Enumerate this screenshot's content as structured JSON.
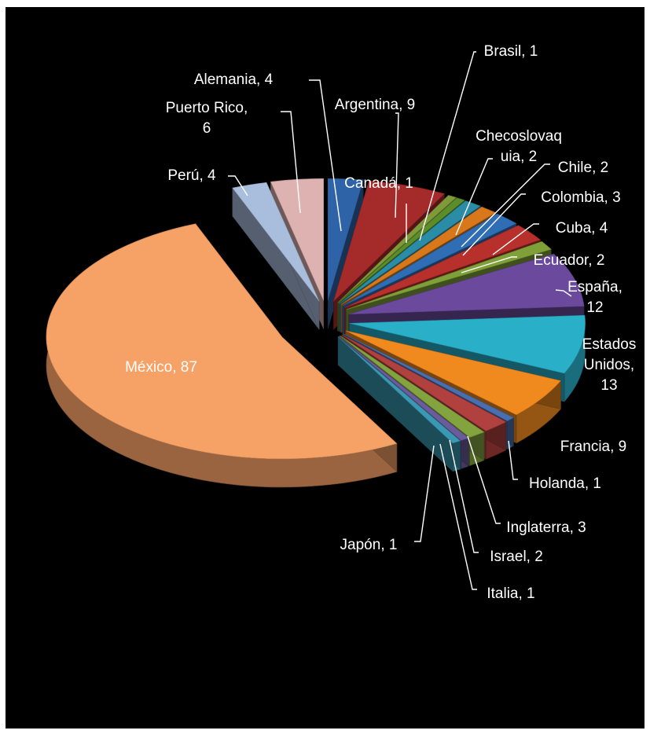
{
  "chart_data": {
    "type": "pie",
    "title": "",
    "labels": [
      "Alemania",
      "Argentina",
      "Brasil",
      "Canadá",
      "Checoslovaquia",
      "Chile",
      "Colombia",
      "Cuba",
      "Ecuador",
      "España",
      "Estados Unidos",
      "Francia",
      "Holanda",
      "Inglaterra",
      "Israel",
      "Italia",
      "Japón",
      "México",
      "Perú",
      "Puerto Rico"
    ],
    "values": [
      4,
      9,
      1,
      1,
      2,
      2,
      3,
      4,
      2,
      12,
      13,
      9,
      1,
      3,
      2,
      1,
      1,
      87,
      4,
      6
    ],
    "data_labels": [
      [
        "Alemania, 4"
      ],
      [
        "Argentina, 9"
      ],
      [
        "Brasil, 1"
      ],
      [
        "Canadá, 1"
      ],
      [
        "Checoslovaq",
        "uia, 2"
      ],
      [
        "Chile, 2"
      ],
      [
        "Colombia, 3"
      ],
      [
        "Cuba, 4"
      ],
      [
        "Ecuador, 2"
      ],
      [
        "España,",
        "12"
      ],
      [
        "Estados",
        "Unidos,",
        "13"
      ],
      [
        "Francia, 9"
      ],
      [
        "Holanda, 1"
      ],
      [
        "Inglaterra, 3"
      ],
      [
        "Israel, 2"
      ],
      [
        "Italia, 1"
      ],
      [
        "Japón, 1"
      ],
      [
        "México, 87"
      ],
      [
        "Perú, 4"
      ],
      [
        "Puerto Rico,",
        "6"
      ]
    ],
    "colors": [
      "#2F63A8",
      "#A52A2A",
      "#7F9A3A",
      "#5B8E2A",
      "#2B8CA8",
      "#D9781B",
      "#2F6EB5",
      "#B8302C",
      "#7FA038",
      "#6B4A9E",
      "#2AAFC9",
      "#F08A1E",
      "#4A6FB0",
      "#B0413E",
      "#83A33F",
      "#6A5B9C",
      "#3A98B2",
      "#F6A165",
      "#A9BEDD",
      "#DDB2B0"
    ],
    "explosion": "all slices exploded",
    "legend": "none",
    "style": "3D",
    "background": "#000000"
  }
}
